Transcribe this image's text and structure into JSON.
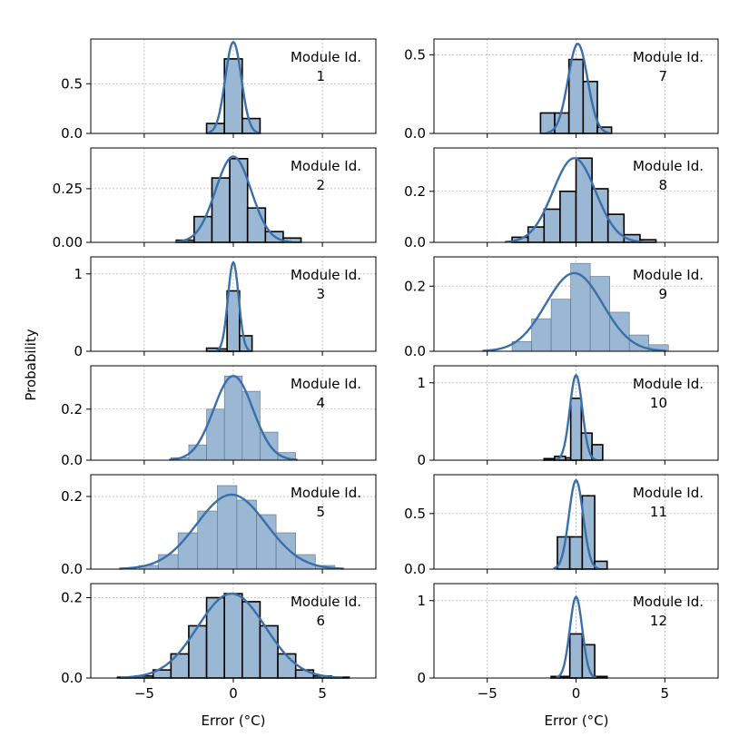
{
  "figure": {
    "ylabel": "Probability",
    "xlabel": "Error (°C)",
    "annotation_prefix": "Module Id."
  },
  "colors": {
    "bar_fill": "#9ab7d3",
    "bar_edge": "#000000",
    "kde_line": "#3a6fa8",
    "grid": "#b0b0b0",
    "axes": "#000000"
  },
  "chart_data": [
    {
      "type": "bar+kde",
      "module_id": "1",
      "xlim": [
        -8,
        8
      ],
      "xticks": [
        -5,
        0,
        5
      ],
      "ylim": [
        0,
        0.95
      ],
      "yticks": [
        0,
        0.5
      ],
      "ytick_labels": [
        "0.0",
        "0.5"
      ],
      "bin_width": 1,
      "edge_strong": true,
      "bins": [
        [
          -1.5,
          0.1
        ],
        [
          -0.5,
          0.75
        ],
        [
          0.5,
          0.15
        ]
      ],
      "kde": {
        "mu": 0,
        "sigma": 0.45,
        "peak": 0.92
      }
    },
    {
      "type": "bar+kde",
      "module_id": "2",
      "xlim": [
        -8,
        8
      ],
      "xticks": [
        -5,
        0,
        5
      ],
      "ylim": [
        0,
        0.44
      ],
      "yticks": [
        0,
        0.25
      ],
      "ytick_labels": [
        "0.00",
        "0.25"
      ],
      "bin_width": 1,
      "edge_strong": true,
      "bins": [
        [
          -3.2,
          0.01
        ],
        [
          -2.2,
          0.12
        ],
        [
          -1.2,
          0.3
        ],
        [
          -0.2,
          0.39
        ],
        [
          0.8,
          0.16
        ],
        [
          1.8,
          0.05
        ],
        [
          2.8,
          0.02
        ]
      ],
      "kde": {
        "mu": 0,
        "sigma": 1.0,
        "peak": 0.4
      }
    },
    {
      "type": "bar+kde",
      "module_id": "3",
      "xlim": [
        -8,
        8
      ],
      "xticks": [
        -5,
        0,
        5
      ],
      "ylim": [
        0,
        1.22
      ],
      "yticks": [
        0,
        1
      ],
      "ytick_labels": [
        "0",
        "1"
      ],
      "bin_width": 0.7,
      "edge_strong": true,
      "bins": [
        [
          -1.5,
          0.04
        ],
        [
          -0.8,
          0.03
        ],
        [
          -0.35,
          0.78
        ],
        [
          0.35,
          0.2
        ]
      ],
      "kde": {
        "mu": 0,
        "sigma": 0.3,
        "peak": 1.15
      }
    },
    {
      "type": "bar+kde",
      "module_id": "4",
      "xlim": [
        -8,
        8
      ],
      "xticks": [
        -5,
        0,
        5
      ],
      "ylim": [
        0,
        0.37
      ],
      "yticks": [
        0,
        0.2
      ],
      "ytick_labels": [
        "0.0",
        "0.2"
      ],
      "bin_width": 1,
      "edge_strong": false,
      "bins": [
        [
          -3.5,
          0.01
        ],
        [
          -2.5,
          0.06
        ],
        [
          -1.5,
          0.2
        ],
        [
          -0.5,
          0.33
        ],
        [
          0.5,
          0.27
        ],
        [
          1.5,
          0.11
        ],
        [
          2.5,
          0.03
        ]
      ],
      "kde": {
        "mu": 0,
        "sigma": 1.1,
        "peak": 0.33
      }
    },
    {
      "type": "bar+kde",
      "module_id": "5",
      "xlim": [
        -8,
        8
      ],
      "xticks": [
        -5,
        0,
        5
      ],
      "ylim": [
        0,
        0.26
      ],
      "yticks": [
        0,
        0.2
      ],
      "ytick_labels": [
        "0.0",
        "0.2"
      ],
      "bin_width": 1.1,
      "edge_strong": false,
      "bins": [
        [
          -5.3,
          0.01
        ],
        [
          -4.2,
          0.04
        ],
        [
          -3.1,
          0.1
        ],
        [
          -2.0,
          0.16
        ],
        [
          -0.9,
          0.23
        ],
        [
          0.2,
          0.19
        ],
        [
          1.3,
          0.15
        ],
        [
          2.4,
          0.1
        ],
        [
          3.5,
          0.04
        ],
        [
          4.6,
          0.01
        ]
      ],
      "kde": {
        "mu": -0.1,
        "sigma": 1.95,
        "peak": 0.205
      }
    },
    {
      "type": "bar+kde",
      "module_id": "6",
      "xlim": [
        -8,
        8
      ],
      "xticks": [
        -5,
        0,
        5
      ],
      "ylim": [
        0,
        0.235
      ],
      "yticks": [
        0,
        0.2
      ],
      "ytick_labels": [
        "0.0",
        "0.2"
      ],
      "bin_width": 1,
      "edge_strong": true,
      "bins": [
        [
          -6.5,
          0.002
        ],
        [
          -5.5,
          0.005
        ],
        [
          -4.5,
          0.02
        ],
        [
          -3.5,
          0.06
        ],
        [
          -2.5,
          0.13
        ],
        [
          -1.5,
          0.2
        ],
        [
          -0.5,
          0.21
        ],
        [
          0.5,
          0.19
        ],
        [
          1.5,
          0.13
        ],
        [
          2.5,
          0.06
        ],
        [
          3.5,
          0.02
        ],
        [
          4.5,
          0.005
        ],
        [
          5.5,
          0.002
        ]
      ],
      "kde": {
        "mu": -0.1,
        "sigma": 1.9,
        "peak": 0.21
      }
    },
    {
      "type": "bar+kde",
      "module_id": "7",
      "xlim": [
        -8,
        8
      ],
      "xticks": [
        -5,
        0,
        5
      ],
      "ylim": [
        0,
        0.6
      ],
      "yticks": [
        0,
        0.5
      ],
      "ytick_labels": [
        "0.0",
        "0.5"
      ],
      "bin_width": 0.8,
      "edge_strong": true,
      "bins": [
        [
          -2.0,
          0.13
        ],
        [
          -1.2,
          0.13
        ],
        [
          -0.4,
          0.47
        ],
        [
          0.4,
          0.33
        ],
        [
          1.2,
          0.04
        ]
      ],
      "kde": {
        "mu": 0.1,
        "sigma": 0.55,
        "peak": 0.57
      }
    },
    {
      "type": "bar+kde",
      "module_id": "8",
      "xlim": [
        -8,
        8
      ],
      "xticks": [
        -5,
        0,
        5
      ],
      "ylim": [
        0,
        0.37
      ],
      "yticks": [
        0,
        0.2
      ],
      "ytick_labels": [
        "0.0",
        "0.2"
      ],
      "bin_width": 0.9,
      "edge_strong": true,
      "bins": [
        [
          -3.6,
          0.02
        ],
        [
          -2.7,
          0.06
        ],
        [
          -1.8,
          0.13
        ],
        [
          -0.9,
          0.2
        ],
        [
          0,
          0.33
        ],
        [
          0.9,
          0.21
        ],
        [
          1.8,
          0.11
        ],
        [
          2.7,
          0.03
        ],
        [
          3.6,
          0.01
        ]
      ],
      "kde": {
        "mu": -0.1,
        "sigma": 1.2,
        "peak": 0.33
      }
    },
    {
      "type": "bar+kde",
      "module_id": "9",
      "xlim": [
        -8,
        8
      ],
      "xticks": [
        -5,
        0,
        5
      ],
      "ylim": [
        0,
        0.29
      ],
      "yticks": [
        0,
        0.2
      ],
      "ytick_labels": [
        "0.0",
        "0.2"
      ],
      "bin_width": 1.1,
      "edge_strong": false,
      "bins": [
        [
          -3.6,
          0.03
        ],
        [
          -2.5,
          0.1
        ],
        [
          -1.4,
          0.16
        ],
        [
          -0.3,
          0.27
        ],
        [
          0.8,
          0.23
        ],
        [
          1.9,
          0.12
        ],
        [
          3.0,
          0.05
        ],
        [
          4.1,
          0.02
        ]
      ],
      "kde": {
        "mu": -0.1,
        "sigma": 1.6,
        "peak": 0.24
      }
    },
    {
      "type": "bar+kde",
      "module_id": "10",
      "xlim": [
        -8,
        8
      ],
      "xticks": [
        -5,
        0,
        5
      ],
      "ylim": [
        0,
        1.22
      ],
      "yticks": [
        0,
        1
      ],
      "ytick_labels": [
        "0",
        "1"
      ],
      "bin_width": 0.6,
      "edge_strong": true,
      "bins": [
        [
          -1.8,
          0.02
        ],
        [
          -1.2,
          0.05
        ],
        [
          -0.6,
          0.03
        ],
        [
          -0.3,
          0.8
        ],
        [
          0.3,
          0.35
        ],
        [
          0.9,
          0.2
        ]
      ],
      "kde": {
        "mu": 0,
        "sigma": 0.35,
        "peak": 1.1
      }
    },
    {
      "type": "bar+kde",
      "module_id": "11",
      "xlim": [
        -8,
        8
      ],
      "xticks": [
        -5,
        0,
        5
      ],
      "ylim": [
        0,
        0.85
      ],
      "yticks": [
        0,
        0.5
      ],
      "ytick_labels": [
        "0.0",
        "0.5"
      ],
      "bin_width": 0.7,
      "edge_strong": true,
      "bins": [
        [
          -1.05,
          0.29
        ],
        [
          -0.35,
          0.29
        ],
        [
          0.35,
          0.66
        ],
        [
          1.05,
          0.07
        ]
      ],
      "kde": {
        "mu": 0,
        "sigma": 0.4,
        "peak": 0.8
      }
    },
    {
      "type": "bar+kde",
      "module_id": "12",
      "xlim": [
        -8,
        8
      ],
      "xticks": [
        -5,
        0,
        5
      ],
      "ylim": [
        0,
        1.22
      ],
      "yticks": [
        0,
        1
      ],
      "ytick_labels": [
        "0",
        "1"
      ],
      "bin_width": 0.7,
      "edge_strong": true,
      "bins": [
        [
          -1.4,
          0.02
        ],
        [
          -0.7,
          0.02
        ],
        [
          -0.35,
          0.57
        ],
        [
          0.35,
          0.43
        ],
        [
          1.05,
          0.02
        ]
      ],
      "kde": {
        "mu": 0,
        "sigma": 0.35,
        "peak": 1.05
      }
    }
  ]
}
